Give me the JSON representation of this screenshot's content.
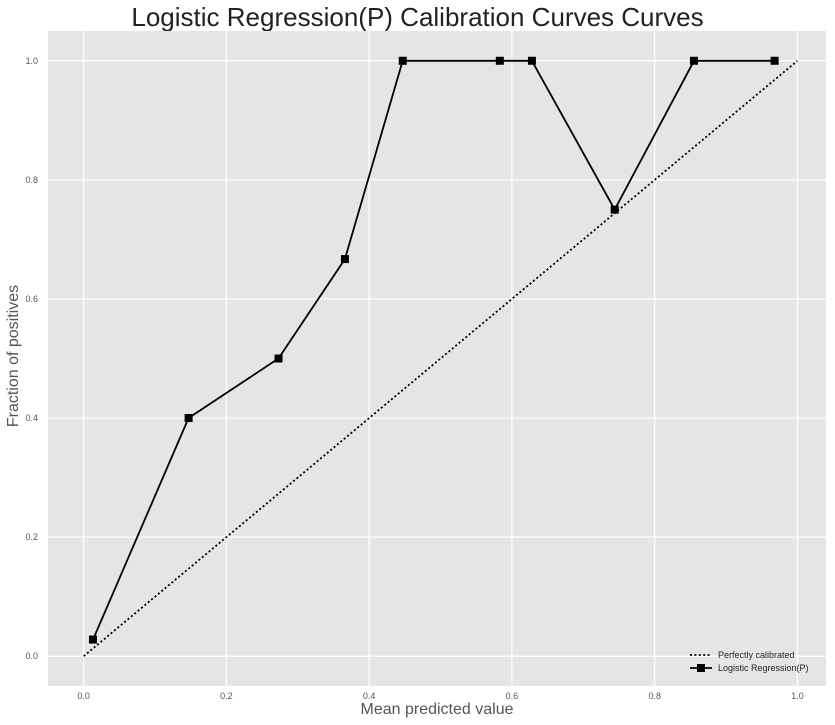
{
  "chart_data": {
    "type": "line",
    "title": "Logistic Regression(P) Calibration Curves Curves",
    "xlabel": "Mean predicted value",
    "ylabel": "Fraction of positives",
    "xlim": [
      -0.05,
      1.04
    ],
    "ylim": [
      -0.05,
      1.05
    ],
    "xticks": [
      0.0,
      0.2,
      0.4,
      0.6,
      0.8,
      1.0
    ],
    "xtick_labels": [
      "0.0",
      "0.2",
      "0.4",
      "0.6",
      "0.8",
      "1.0"
    ],
    "yticks": [
      0.0,
      0.2,
      0.4,
      0.6,
      0.8,
      1.0
    ],
    "ytick_labels": [
      "0.0",
      "0.2",
      "0.4",
      "0.6",
      "0.8",
      "1.0"
    ],
    "grid": true,
    "legend_position": "bottom-right",
    "background_color": "#e5e5e5",
    "grid_color": "#ffffff",
    "series": [
      {
        "name": "Perfectly calibrated",
        "style": "dotted",
        "color": "#000000",
        "marker": "none",
        "x": [
          0.0,
          1.0
        ],
        "y": [
          0.0,
          1.0
        ]
      },
      {
        "name": "Logistic Regression(P)",
        "style": "solid",
        "color": "#000000",
        "marker": "square",
        "x": [
          0.013,
          0.147,
          0.273,
          0.366,
          0.447,
          0.583,
          0.628,
          0.744,
          0.855,
          0.968
        ],
        "y": [
          0.028,
          0.4,
          0.5,
          0.667,
          1.0,
          1.0,
          1.0,
          0.75,
          1.0,
          1.0
        ]
      }
    ]
  }
}
